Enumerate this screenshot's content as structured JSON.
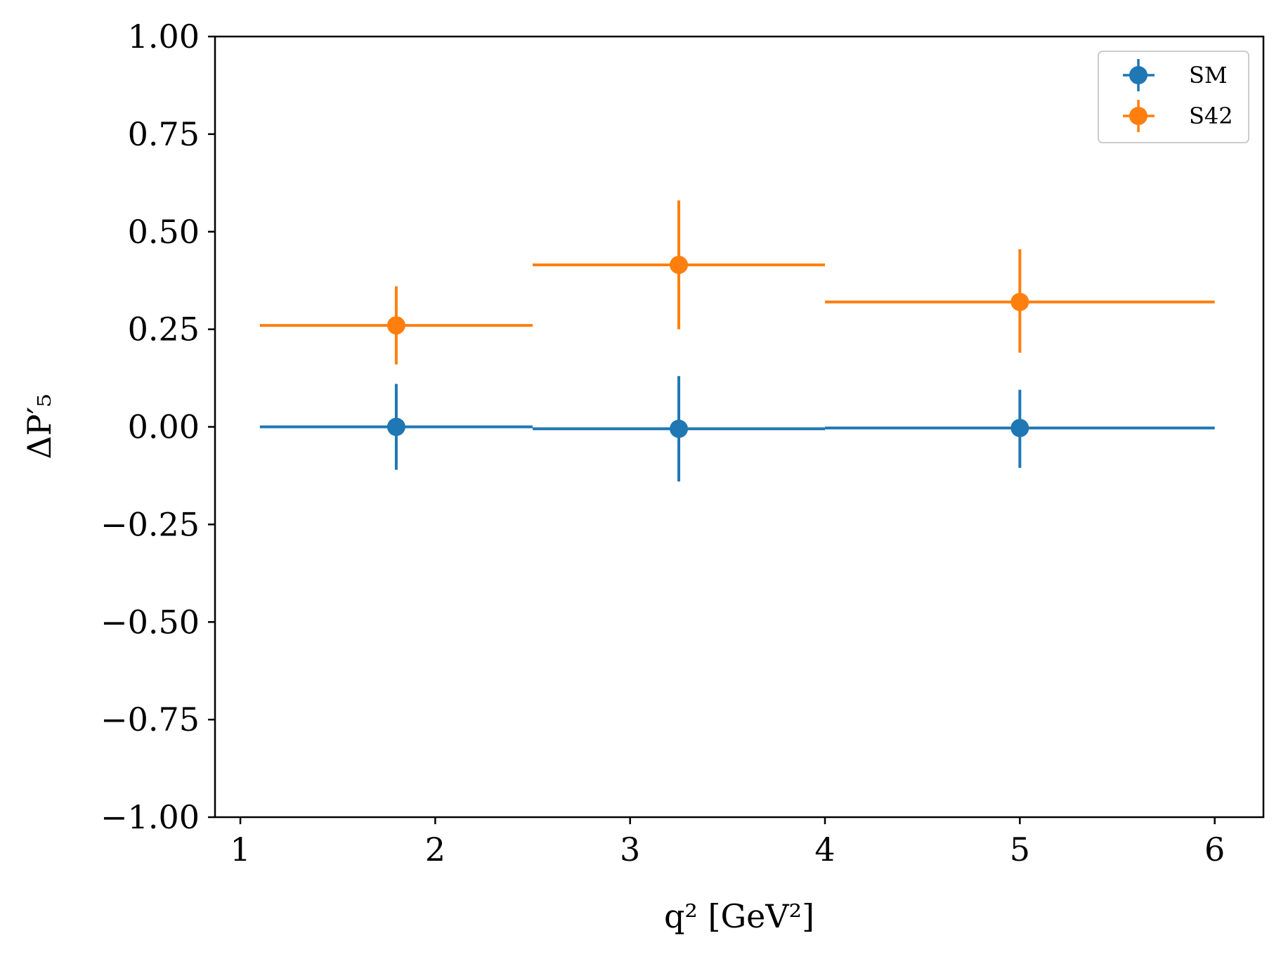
{
  "chart_data": {
    "type": "scatter",
    "title": "",
    "xlabel": "q² [GeV²]",
    "ylabel": "ΔP′₅",
    "xlim": [
      0.87,
      6.25
    ],
    "ylim": [
      -1.0,
      1.0
    ],
    "xticks": [
      1,
      2,
      3,
      4,
      5,
      6
    ],
    "yticks": [
      1.0,
      0.75,
      0.5,
      0.25,
      0.0,
      -0.25,
      -0.5,
      -0.75,
      -1.0
    ],
    "xtick_labels": [
      "1",
      "2",
      "3",
      "4",
      "5",
      "6"
    ],
    "ytick_labels": [
      "1.00",
      "0.75",
      "0.50",
      "0.25",
      "0.00",
      "−0.25",
      "−0.50",
      "−0.75",
      "−1.00"
    ],
    "grid": false,
    "legend_position": "top-right",
    "series": [
      {
        "name": "SM",
        "color": "#1f77b4",
        "points": [
          {
            "x": 1.8,
            "xlo": 1.1,
            "xhi": 2.5,
            "y": 0.0,
            "ylo": -0.11,
            "yhi": 0.11
          },
          {
            "x": 3.25,
            "xlo": 2.5,
            "xhi": 4.0,
            "y": -0.005,
            "ylo": -0.14,
            "yhi": 0.13
          },
          {
            "x": 5.0,
            "xlo": 4.0,
            "xhi": 6.0,
            "y": -0.003,
            "ylo": -0.105,
            "yhi": 0.095
          }
        ]
      },
      {
        "name": "S42",
        "color": "#ff7f0e",
        "points": [
          {
            "x": 1.8,
            "xlo": 1.1,
            "xhi": 2.5,
            "y": 0.26,
            "ylo": 0.16,
            "yhi": 0.36
          },
          {
            "x": 3.25,
            "xlo": 2.5,
            "xhi": 4.0,
            "y": 0.415,
            "ylo": 0.25,
            "yhi": 0.58
          },
          {
            "x": 5.0,
            "xlo": 4.0,
            "xhi": 6.0,
            "y": 0.32,
            "ylo": 0.19,
            "yhi": 0.455
          }
        ]
      }
    ]
  }
}
